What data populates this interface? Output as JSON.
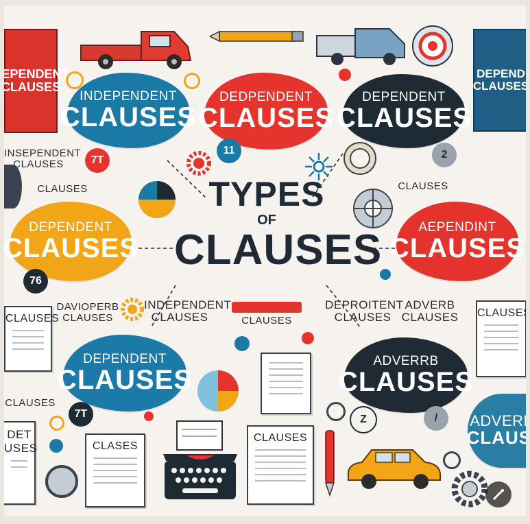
{
  "clusters": {
    "top_left": {
      "line1": "INDEPENDENT",
      "line2": "CLAUSES",
      "color": "#1b79a6"
    },
    "top_mid": {
      "line1": "DEDPENDENT",
      "line2": "CLAUSES",
      "color": "#e5332d"
    },
    "top_right": {
      "line1": "DEPENDENT",
      "line2": "CLAUSES",
      "color": "#1e2a34"
    },
    "mid_left": {
      "line1": "DEPENDENT",
      "line2": "CLAUSES",
      "color": "#f2a516"
    },
    "mid_right": {
      "line1": "AEPENDINT",
      "line2": "CLAUSES",
      "color": "#e3332c"
    },
    "bot_left": {
      "line1": "DEPENDENT",
      "line2": "CLAUSES",
      "color": "#1c7aa8"
    },
    "bot_right": {
      "line1": "ADVERRB",
      "line2": "CLAUSES",
      "color": "#1f2a34"
    },
    "edge_right": {
      "line1": "ADVERE",
      "line2": "CLAUSI",
      "color": "#2a7ea4"
    }
  },
  "title": {
    "line1": "TYPES",
    "line2": "OF",
    "line3": "CLAUSES"
  },
  "labels": {
    "inspendent": "INSEPENDENT\nCLAUSES",
    "left_clauses": "CLAUSES",
    "right_clauses": "CLAUSES",
    "davioperb": "DAVIOPERB\nCLAUSES",
    "independent_mid": "INDEPENDENT\nCLAUSES",
    "clauses_center": "CLAUSES",
    "depreitent": "DEPROITENT\nCLAUSES",
    "adverb_right": "ADVERB\nCLAUSES",
    "clauses_lower_left": "CLAUSES"
  },
  "papers": {
    "left_doc": "CLAUSES",
    "clases": "CLASES",
    "center_doc": "CLAUSES",
    "right_doc": "CLAUSES",
    "edge_left": "DET\nUSES"
  },
  "books": {
    "left": "DEPENDENT\nCLAUSES",
    "right": "DEPEND\nCLAUSES"
  },
  "badges": {
    "b1": "7T",
    "b2": "11",
    "b3": "2",
    "b4": "76",
    "b5": "7T",
    "b6": "Z",
    "b7": "/"
  },
  "colors": {
    "red": "#e5332d",
    "blue": "#1b79a6",
    "navy": "#1e2a34",
    "orange": "#f2a516",
    "background": "#f6f3ee"
  },
  "icons": [
    "red-truck-icon",
    "blue-truck-icon",
    "pencil-icon",
    "target-icon",
    "gear-icon",
    "pie-chart-icon",
    "typewriter-icon",
    "orange-car-icon",
    "pen-icon",
    "magic-wand-icon"
  ]
}
